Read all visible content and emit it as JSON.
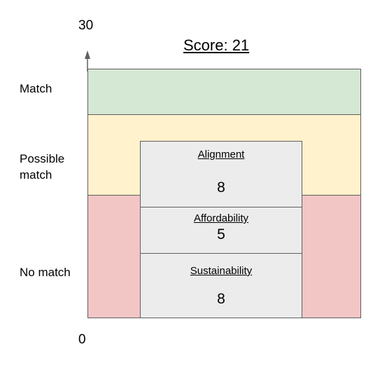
{
  "axis": {
    "max_label": "30",
    "min_label": "0",
    "max": 30,
    "min": 0
  },
  "score_label": "Score: 21",
  "zones": [
    {
      "label": "Match",
      "color": "#d5e8d4"
    },
    {
      "label": "Possible\nmatch",
      "color": "#fff2cc"
    },
    {
      "label": "No match",
      "color": "#f3c6c6"
    }
  ],
  "metrics": [
    {
      "title": "Alignment",
      "value": "8"
    },
    {
      "title": "Affordability",
      "value": "5"
    },
    {
      "title": "Sustainability",
      "value": "8"
    }
  ],
  "colors": {
    "metric_box": "#ececec",
    "border": "#5f5f5f"
  }
}
